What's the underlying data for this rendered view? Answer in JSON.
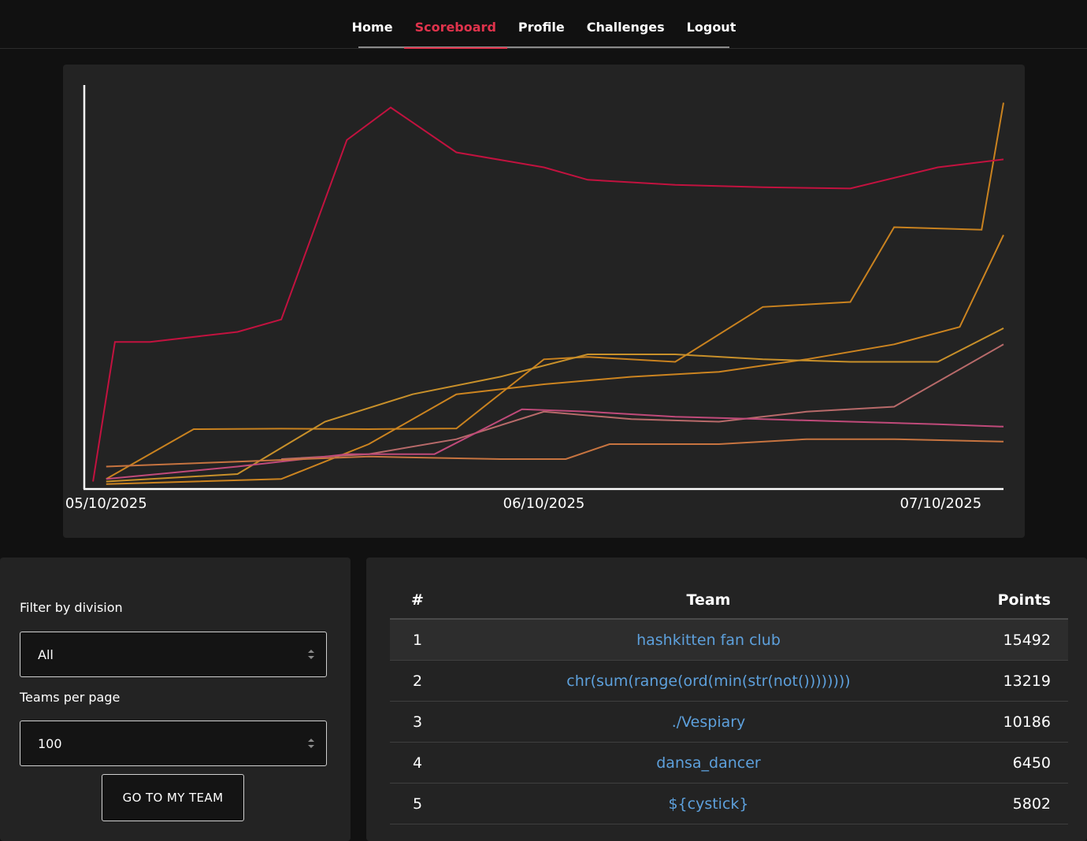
{
  "nav": {
    "items": [
      {
        "label": "Home",
        "active": false
      },
      {
        "label": "Scoreboard",
        "active": true
      },
      {
        "label": "Profile",
        "active": false
      },
      {
        "label": "Challenges",
        "active": false
      },
      {
        "label": "Logout",
        "active": false
      }
    ]
  },
  "filters": {
    "division_label": "Filter by division",
    "division_value": "All",
    "per_page_label": "Teams per page",
    "per_page_value": "100",
    "goto_button": "GO TO MY TEAM"
  },
  "scoreboard": {
    "headers": {
      "rank": "#",
      "team": "Team",
      "points": "Points"
    },
    "rows": [
      {
        "rank": "1",
        "team": "hashkitten fan club",
        "points": "15492"
      },
      {
        "rank": "2",
        "team": "chr(sum(range(ord(min(str(not())))))))",
        "points": "13219"
      },
      {
        "rank": "3",
        "team": "./Vespiary",
        "points": "10186"
      },
      {
        "rank": "4",
        "team": "dansa_dancer",
        "points": "6450"
      },
      {
        "rank": "5",
        "team": "${cystick}",
        "points": "5802"
      }
    ]
  },
  "colors": {
    "accent_active": "#e0334c",
    "link": "#5da0dc"
  },
  "chart_data": {
    "type": "line",
    "x_tick_labels": [
      "05/10/2025",
      "06/10/2025",
      "07/10/2025"
    ],
    "ylabel": "",
    "xlabel": "",
    "grid": false,
    "legend": "none",
    "series": [
      {
        "color": "#c9821f",
        "points": [
          [
            5.0,
            400
          ],
          [
            5.2,
            2400
          ],
          [
            5.4,
            2420
          ],
          [
            5.6,
            2400
          ],
          [
            5.8,
            2430
          ],
          [
            6.0,
            5200
          ],
          [
            6.1,
            5300
          ],
          [
            6.3,
            5100
          ],
          [
            6.5,
            7300
          ],
          [
            6.7,
            7500
          ],
          [
            6.8,
            10500
          ],
          [
            7.0,
            10400
          ],
          [
            7.05,
            15492
          ]
        ]
      },
      {
        "color": "#c2123f",
        "points": [
          [
            4.97,
            300
          ],
          [
            5.02,
            5900
          ],
          [
            5.1,
            5900
          ],
          [
            5.3,
            6300
          ],
          [
            5.4,
            6800
          ],
          [
            5.55,
            14000
          ],
          [
            5.65,
            15300
          ],
          [
            5.8,
            13500
          ],
          [
            6.0,
            12900
          ],
          [
            6.1,
            12400
          ],
          [
            6.3,
            12200
          ],
          [
            6.5,
            12100
          ],
          [
            6.7,
            12050
          ],
          [
            6.9,
            12900
          ],
          [
            7.05,
            13219
          ]
        ]
      },
      {
        "color": "#cc8420",
        "points": [
          [
            5.0,
            200
          ],
          [
            5.4,
            400
          ],
          [
            5.6,
            1800
          ],
          [
            5.8,
            3800
          ],
          [
            6.0,
            4200
          ],
          [
            6.2,
            4500
          ],
          [
            6.4,
            4700
          ],
          [
            6.6,
            5200
          ],
          [
            6.8,
            5800
          ],
          [
            6.95,
            6500
          ],
          [
            7.05,
            10186
          ]
        ]
      },
      {
        "color": "#c8902a",
        "points": [
          [
            5.0,
            300
          ],
          [
            5.3,
            600
          ],
          [
            5.5,
            2700
          ],
          [
            5.7,
            3800
          ],
          [
            5.9,
            4500
          ],
          [
            6.1,
            5400
          ],
          [
            6.3,
            5400
          ],
          [
            6.5,
            5200
          ],
          [
            6.7,
            5100
          ],
          [
            6.9,
            5100
          ],
          [
            7.05,
            6450
          ]
        ]
      },
      {
        "color": "#b86a6a",
        "points": [
          [
            5.4,
            1200
          ],
          [
            5.6,
            1400
          ],
          [
            5.8,
            2000
          ],
          [
            6.0,
            3100
          ],
          [
            6.2,
            2800
          ],
          [
            6.4,
            2700
          ],
          [
            6.6,
            3100
          ],
          [
            6.8,
            3300
          ],
          [
            7.05,
            5802
          ]
        ]
      },
      {
        "color": "#c04a7a",
        "points": [
          [
            5.0,
            400
          ],
          [
            5.3,
            900
          ],
          [
            5.55,
            1400
          ],
          [
            5.75,
            1400
          ],
          [
            5.95,
            3200
          ],
          [
            6.1,
            3100
          ],
          [
            6.3,
            2900
          ],
          [
            6.5,
            2800
          ],
          [
            6.7,
            2700
          ],
          [
            6.9,
            2600
          ],
          [
            7.05,
            2500
          ]
        ]
      },
      {
        "color": "#c77440",
        "points": [
          [
            5.0,
            900
          ],
          [
            5.3,
            1100
          ],
          [
            5.6,
            1300
          ],
          [
            5.9,
            1200
          ],
          [
            6.05,
            1200
          ],
          [
            6.15,
            1800
          ],
          [
            6.4,
            1800
          ],
          [
            6.6,
            2000
          ],
          [
            6.8,
            2000
          ],
          [
            7.05,
            1900
          ]
        ]
      }
    ]
  }
}
